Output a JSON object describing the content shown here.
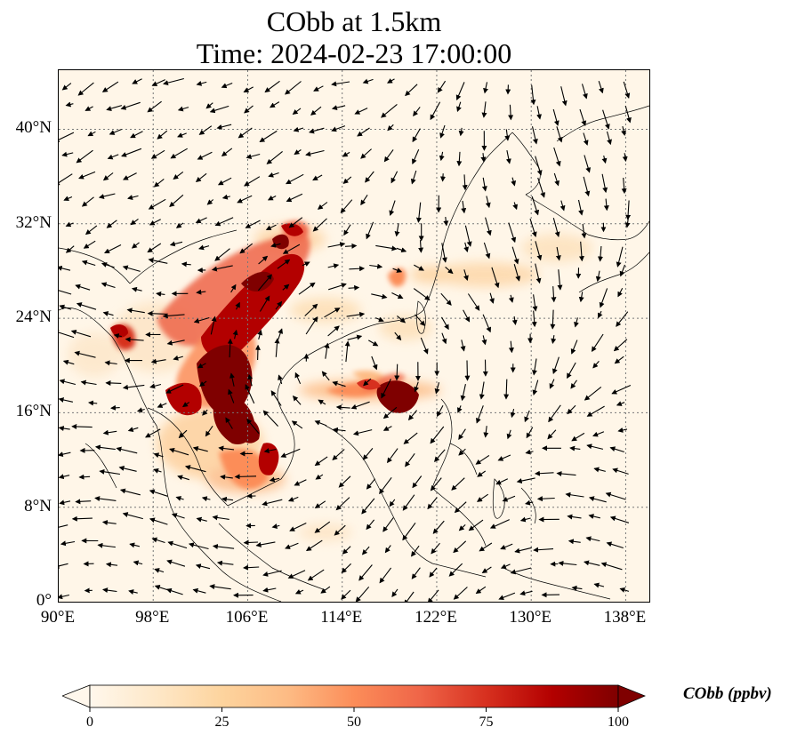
{
  "title": {
    "line1": "CObb at 1.5km",
    "line2": "Time: 2024-02-23 17:00:00"
  },
  "map": {
    "variable": "CObb",
    "level": "1.5km",
    "extent": {
      "lon_min": 90,
      "lon_max": 140,
      "lat_min": 0,
      "lat_max": 45
    },
    "gridlines": "dotted",
    "lat_ticks": [
      {
        "value": 0,
        "label": "0°"
      },
      {
        "value": 8,
        "label": "8°N"
      },
      {
        "value": 16,
        "label": "16°N"
      },
      {
        "value": 24,
        "label": "24°N"
      },
      {
        "value": 32,
        "label": "32°N"
      },
      {
        "value": 40,
        "label": "40°N"
      }
    ],
    "lon_ticks": [
      {
        "value": 90,
        "label": "90°E"
      },
      {
        "value": 98,
        "label": "98°E"
      },
      {
        "value": 106,
        "label": "106°E"
      },
      {
        "value": 114,
        "label": "114°E"
      },
      {
        "value": 122,
        "label": "122°E"
      },
      {
        "value": 130,
        "label": "130°E"
      },
      {
        "value": 138,
        "label": "138°E"
      }
    ],
    "overlay": "wind-vectors"
  },
  "colorbar": {
    "label": "CObb (ppbv)",
    "colormap": "OrRd",
    "extend": "both",
    "min": 0,
    "max": 100,
    "ticks": [
      0,
      25,
      50,
      75,
      100
    ],
    "colors": [
      "#fff7ec",
      "#fee8c8",
      "#fdd49e",
      "#fdbb84",
      "#fc8d59",
      "#ef6548",
      "#d7301f",
      "#b30000",
      "#7f0000"
    ]
  }
}
